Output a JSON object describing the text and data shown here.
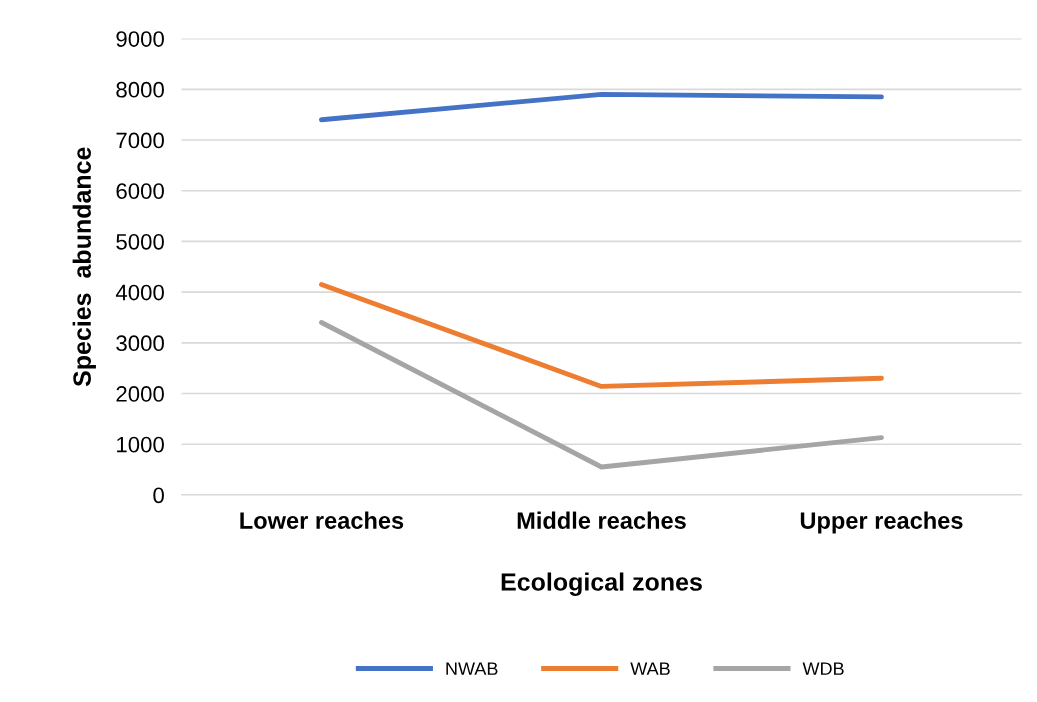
{
  "chart_data": {
    "type": "line",
    "xlabel": "Ecological zones",
    "ylabel": "Species  abundance",
    "categories": [
      "Lower reaches",
      "Middle reaches",
      "Upper reaches"
    ],
    "series": [
      {
        "name": "NWAB",
        "color": "#4472c4",
        "values": [
          7400,
          7900,
          7850
        ]
      },
      {
        "name": "WAB",
        "color": "#ed7d31",
        "values": [
          4150,
          2140,
          2300
        ]
      },
      {
        "name": "WDB",
        "color": "#a5a5a5",
        "values": [
          3400,
          550,
          1130
        ]
      }
    ],
    "ylim": [
      0,
      9000
    ],
    "yticks": [
      0,
      1000,
      2000,
      3000,
      4000,
      5000,
      6000,
      7000,
      8000,
      9000
    ],
    "grid": "y",
    "legend": "bottom",
    "marker": "none",
    "line_style": "solid"
  }
}
